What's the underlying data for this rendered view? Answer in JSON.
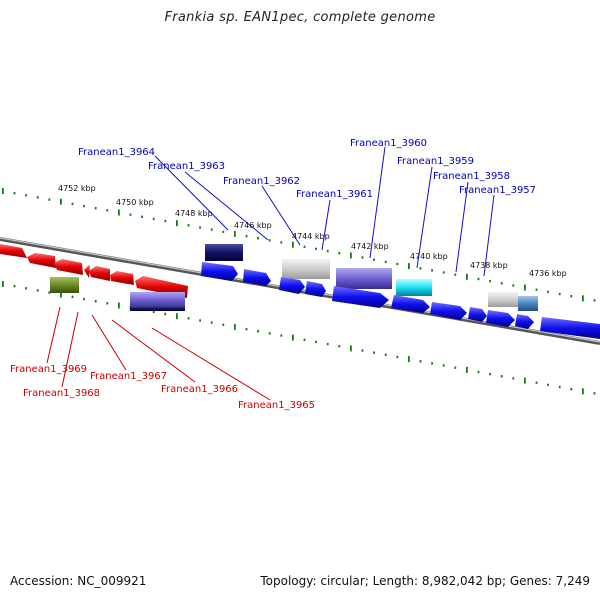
{
  "title": "Frankia sp. EAN1pec, complete genome",
  "footer": {
    "accession": "Accession: NC_009921",
    "summary": "Topology: circular; Length: 8,982,042 bp; Genes: 7,249"
  },
  "colors": {
    "reverse_label": "#cc0000",
    "forward_label": "#0000bb",
    "tick": "#1a7a1a",
    "backbone": "#777777"
  },
  "scale_labels": [
    "4752 kbp",
    "4750 kbp",
    "4748 kbp",
    "4746 kbp",
    "4744 kbp",
    "4742 kbp",
    "4740 kbp",
    "4738 kbp",
    "4736 kbp"
  ],
  "forward_genes": [
    "Franean1_3964",
    "Franean1_3963",
    "Franean1_3962",
    "Franean1_3961",
    "Franean1_3960",
    "Franean1_3959",
    "Franean1_3958",
    "Franean1_3957"
  ],
  "reverse_genes": [
    "Franean1_3969",
    "Franean1_3968",
    "Franean1_3967",
    "Franean1_3966",
    "Franean1_3965"
  ]
}
